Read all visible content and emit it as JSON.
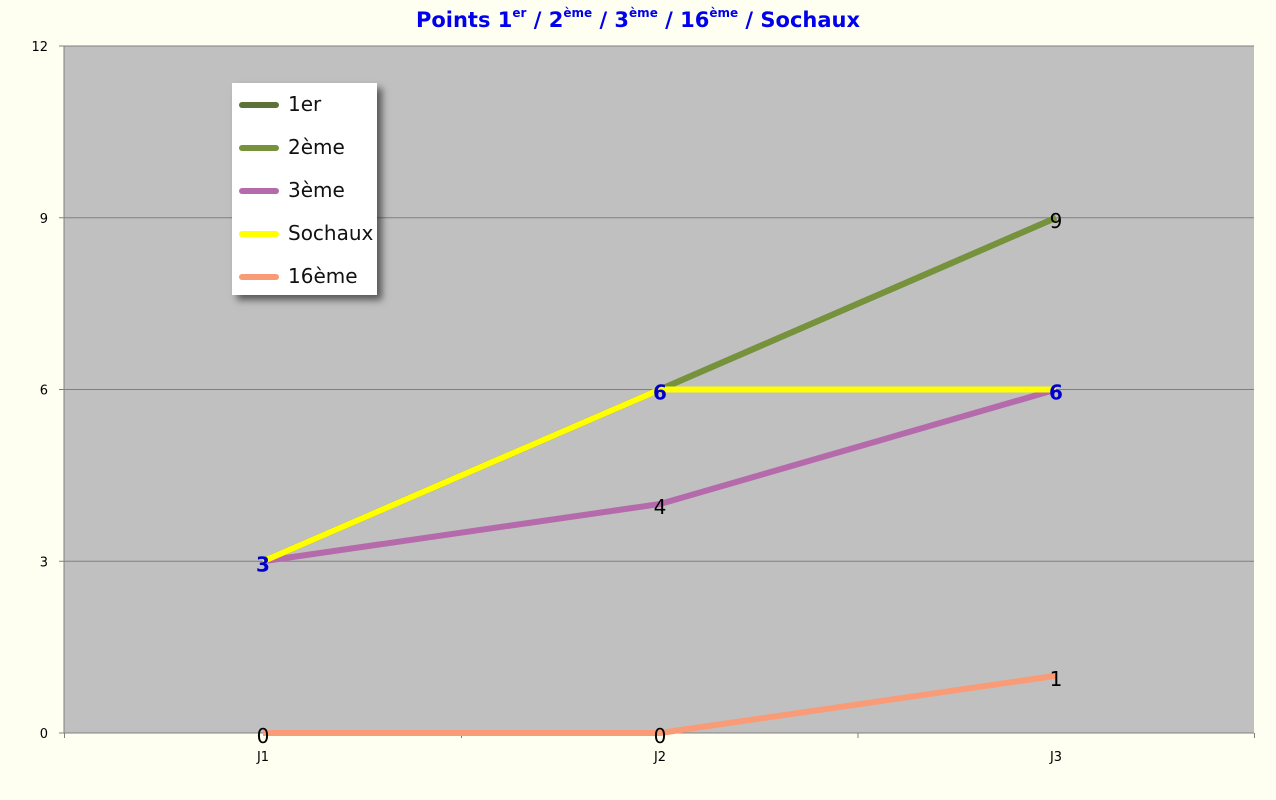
{
  "title": {
    "parts": [
      {
        "text": "Points 1",
        "sup": false
      },
      {
        "text": "er",
        "sup": true
      },
      {
        "text": " / 2",
        "sup": false
      },
      {
        "text": "ème",
        "sup": true
      },
      {
        "text": " / 3",
        "sup": false
      },
      {
        "text": "ème",
        "sup": true
      },
      {
        "text": " / 16",
        "sup": false
      },
      {
        "text": "ème",
        "sup": true
      },
      {
        "text": " / Sochaux",
        "sup": false
      }
    ]
  },
  "chart_data": {
    "type": "line",
    "categories": [
      "J1",
      "J2",
      "J3"
    ],
    "ylim": [
      0,
      12
    ],
    "yticks": [
      "0",
      "3",
      "6",
      "9",
      "12"
    ],
    "grid": true,
    "legend_position": "top-left",
    "plot_background": "#c0c0c0",
    "series": [
      {
        "name": "1er",
        "color": "#5c7237",
        "values": [
          3,
          6,
          9
        ],
        "labels": [
          null,
          null,
          "9"
        ],
        "label_color": "#000000"
      },
      {
        "name": "2ème",
        "color": "#76933c",
        "values": [
          3,
          6,
          9
        ],
        "labels": [
          null,
          null,
          null
        ],
        "label_color": "#000000"
      },
      {
        "name": "3ème",
        "color": "#b56aab",
        "values": [
          3,
          4,
          6
        ],
        "labels": [
          null,
          "4",
          null
        ],
        "label_color": "#000000"
      },
      {
        "name": "Sochaux",
        "color": "#ffff00",
        "values": [
          3,
          6,
          6
        ],
        "labels": [
          "3",
          "6",
          "6"
        ],
        "label_color": "#0000cc"
      },
      {
        "name": "16ème",
        "color": "#f99b76",
        "values": [
          0,
          0,
          1
        ],
        "labels": [
          "0",
          "0",
          "1"
        ],
        "label_color": "#000000"
      }
    ]
  }
}
